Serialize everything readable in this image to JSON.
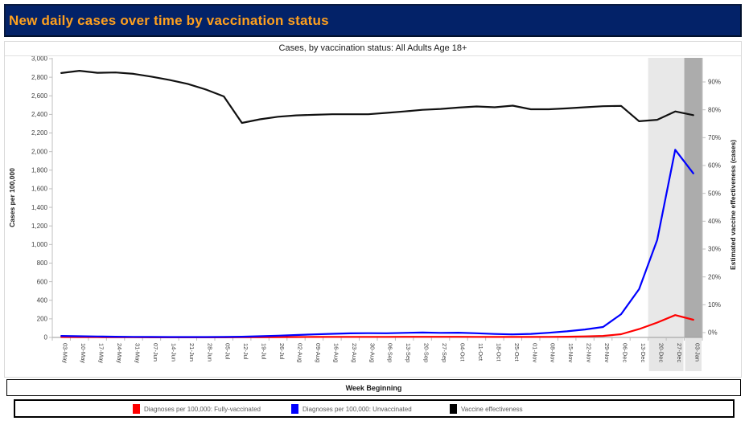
{
  "header": {
    "title": "New daily cases over time by vaccination status"
  },
  "colors": {
    "header_bg": "#032268",
    "header_text": "#FFA01E",
    "band_light": "#E8E8E8",
    "band_dark": "#ACACAC",
    "band_below_axis": "#E6E6E6",
    "axis_line": "#BFBFBF",
    "bottom_axis_line": "#999999",
    "axis_text": "#3F3F3F",
    "legend_text": "#595959"
  },
  "chart": {
    "title": "Cases, by vaccination status: All Adults Age 18+",
    "x_axis_title": "Week Beginning",
    "left_axis": {
      "title": "Cases per 100,000",
      "min": 0,
      "max": 3000,
      "step": 200
    },
    "right_axis": {
      "title": "Estimated vaccine effectiveness (cases)",
      "min": 0,
      "max": 90,
      "step": 10,
      "suffix": "%"
    }
  },
  "chart_data": {
    "type": "line",
    "title": "Cases, by vaccination status: All Adults Age 18+",
    "xlabel": "Week Beginning",
    "ylabel_left": "Cases per 100,000",
    "ylabel_right": "Estimated vaccine effectiveness (cases)",
    "ylim_left": [
      0,
      3000
    ],
    "ylim_right_pct": [
      0,
      90
    ],
    "grid": false,
    "legend_position": "bottom",
    "categories": [
      "03-May",
      "10-May",
      "17-May",
      "24-May",
      "31-May",
      "07-Jun",
      "14-Jun",
      "21-Jun",
      "28-Jun",
      "05-Jul",
      "12-Jul",
      "19-Jul",
      "26-Jul",
      "02-Aug",
      "09-Aug",
      "16-Aug",
      "23-Aug",
      "30-Aug",
      "06-Sep",
      "13-Sep",
      "20-Sep",
      "27-Sep",
      "04-Oct",
      "11-Oct",
      "18-Oct",
      "25-Oct",
      "01-Nov",
      "08-Nov",
      "15-Nov",
      "22-Nov",
      "29-Nov",
      "06-Dec",
      "13-Dec",
      "20-Dec",
      "27-Dec",
      "03-Jan"
    ],
    "series": [
      {
        "name": "Diagnoses per 100,000: Fully-vaccinated",
        "color": "#FF0000",
        "axis": "left",
        "values": [
          4,
          3,
          3,
          2,
          2,
          1,
          1,
          1,
          1,
          1,
          2,
          2,
          3,
          4,
          5,
          6,
          6,
          6,
          6,
          7,
          7,
          7,
          7,
          6,
          5,
          5,
          5,
          6,
          8,
          11,
          16,
          35,
          90,
          160,
          240,
          190
        ]
      },
      {
        "name": "Diagnoses per 100,000: Unvaccinated",
        "color": "#0000FF",
        "axis": "left",
        "values": [
          16,
          13,
          10,
          8,
          6,
          5,
          4,
          4,
          4,
          5,
          8,
          13,
          19,
          26,
          33,
          39,
          44,
          46,
          45,
          49,
          53,
          49,
          51,
          45,
          37,
          33,
          38,
          50,
          66,
          86,
          112,
          250,
          520,
          1050,
          2020,
          1765
        ]
      },
      {
        "name": "Vaccine effectiveness",
        "color": "#111111",
        "axis": "right",
        "values": [
          93.2,
          94.0,
          93.3,
          93.4,
          92.9,
          91.9,
          90.7,
          89.3,
          87.3,
          84.8,
          75.3,
          76.6,
          77.5,
          78.0,
          78.2,
          78.4,
          78.4,
          78.4,
          78.9,
          79.4,
          80.0,
          80.3,
          80.8,
          81.2,
          80.9,
          81.5,
          80.2,
          80.2,
          80.5,
          80.9,
          81.3,
          81.4,
          75.9,
          76.4,
          79.4,
          78.1
        ]
      }
    ],
    "highlight_bands": [
      {
        "categories": [
          "20-Dec",
          "27-Dec"
        ],
        "style": "light"
      },
      {
        "categories": [
          "03-Jan"
        ],
        "style": "dark"
      }
    ]
  },
  "legend": {
    "items": [
      {
        "label": "Diagnoses per 100,000: Fully-vaccinated",
        "color": "#FF0000"
      },
      {
        "label": "Diagnoses per 100,000: Unvaccinated",
        "color": "#0000FF"
      },
      {
        "label": "Vaccine effectiveness",
        "color": "#000000"
      }
    ]
  }
}
